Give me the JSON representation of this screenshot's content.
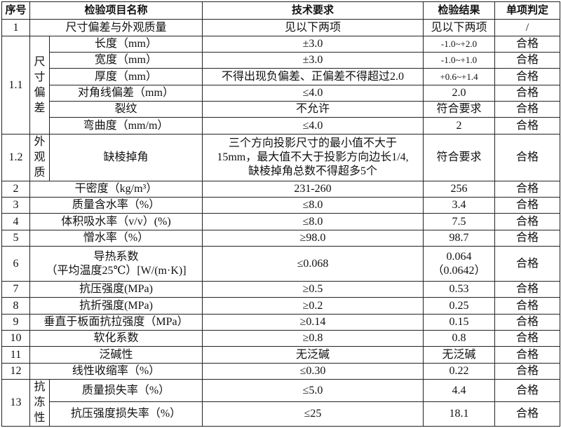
{
  "headers": [
    "序号",
    "检验项目名称",
    "技术要求",
    "检验结果",
    "单项判定"
  ],
  "r1": {
    "no": "1",
    "name": "尺寸偏差与外观质量",
    "req": "见以下两项",
    "res": "见以下两项",
    "judge": "/"
  },
  "g11": {
    "no": "1.1",
    "group": "尺寸偏差",
    "rows": [
      {
        "name": "长度（mm）",
        "req": "±3.0",
        "res": "-1.0~+2.0",
        "judge": "合格"
      },
      {
        "name": "宽度（mm）",
        "req": "±3.0",
        "res": "-1.0~+1.0",
        "judge": "合格"
      },
      {
        "name": "厚度（mm）",
        "req": "不得出现负偏差、正偏差不得超过2.0",
        "res": "+0.6~+1.4",
        "judge": "合格"
      },
      {
        "name": "对角线偏差（mm）",
        "req": "≤4.0",
        "res": "2.0",
        "judge": "合格"
      },
      {
        "name": "裂纹",
        "req": "不允许",
        "res": "符合要求",
        "judge": "合格"
      },
      {
        "name": "弯曲度（mm/m）",
        "req": "≤4.0",
        "res": "2",
        "judge": "合格"
      }
    ]
  },
  "g12": {
    "no": "1.2",
    "group": "外观质",
    "name": "缺棱掉角",
    "req1": "三个方向投影尺寸的最小值不大于",
    "req2": "15mm，最大值不大于投影方向边长1/4,",
    "req3": "缺棱掉角总数不得超多5个",
    "res": "符合要求",
    "judge": "合格"
  },
  "rows": [
    {
      "no": "2",
      "name": "干密度（kg/m³）",
      "req": "231-260",
      "res": "256",
      "judge": "合格"
    },
    {
      "no": "3",
      "name": "质量含水率（%）",
      "req": "≤8.0",
      "res": "3.4",
      "judge": "合格"
    },
    {
      "no": "4",
      "name": "体积吸水率（v/v）(%)",
      "req": "≤8.0",
      "res": "7.5",
      "judge": "合格"
    },
    {
      "no": "5",
      "name": "憎水率（%）",
      "req": "≥98.0",
      "res": "98.7",
      "judge": "合格"
    }
  ],
  "r6": {
    "no": "6",
    "name1": "导热系数",
    "name2": "（平均温度25℃）[W/(m·K)]",
    "req": "≤0.068",
    "res1": "0.064",
    "res2": "（0.0642）",
    "judge": "合格"
  },
  "rows2": [
    {
      "no": "7",
      "name": "抗压强度(MPa)",
      "req": "≥0.5",
      "res": "0.53",
      "judge": "合格"
    },
    {
      "no": "8",
      "name": "抗折强度(MPa)",
      "req": "≥0.2",
      "res": "0.25",
      "judge": "合格"
    },
    {
      "no": "9",
      "name": "垂直于板面抗拉强度（MPa）",
      "req": "≥0.14",
      "res": "0.15",
      "judge": "合格"
    },
    {
      "no": "10",
      "name": "软化系数",
      "req": "≥0.8",
      "res": "0.8",
      "judge": "合格"
    },
    {
      "no": "11",
      "name": "泛碱性",
      "req": "无泛碱",
      "res": "无泛碱",
      "judge": "合格"
    },
    {
      "no": "12",
      "name": "线性收缩率（%）",
      "req": "≤0.30",
      "res": "0.22",
      "judge": "合格"
    }
  ],
  "g13": {
    "no": "13",
    "group": "抗冻性",
    "rows": [
      {
        "name": "质量损失率（%）",
        "req": "≤5.0",
        "res": "4.4",
        "judge": "合格"
      },
      {
        "name": "抗压强度损失率（%）",
        "req": "≤25",
        "res": "18.1",
        "judge": "合格"
      }
    ]
  }
}
